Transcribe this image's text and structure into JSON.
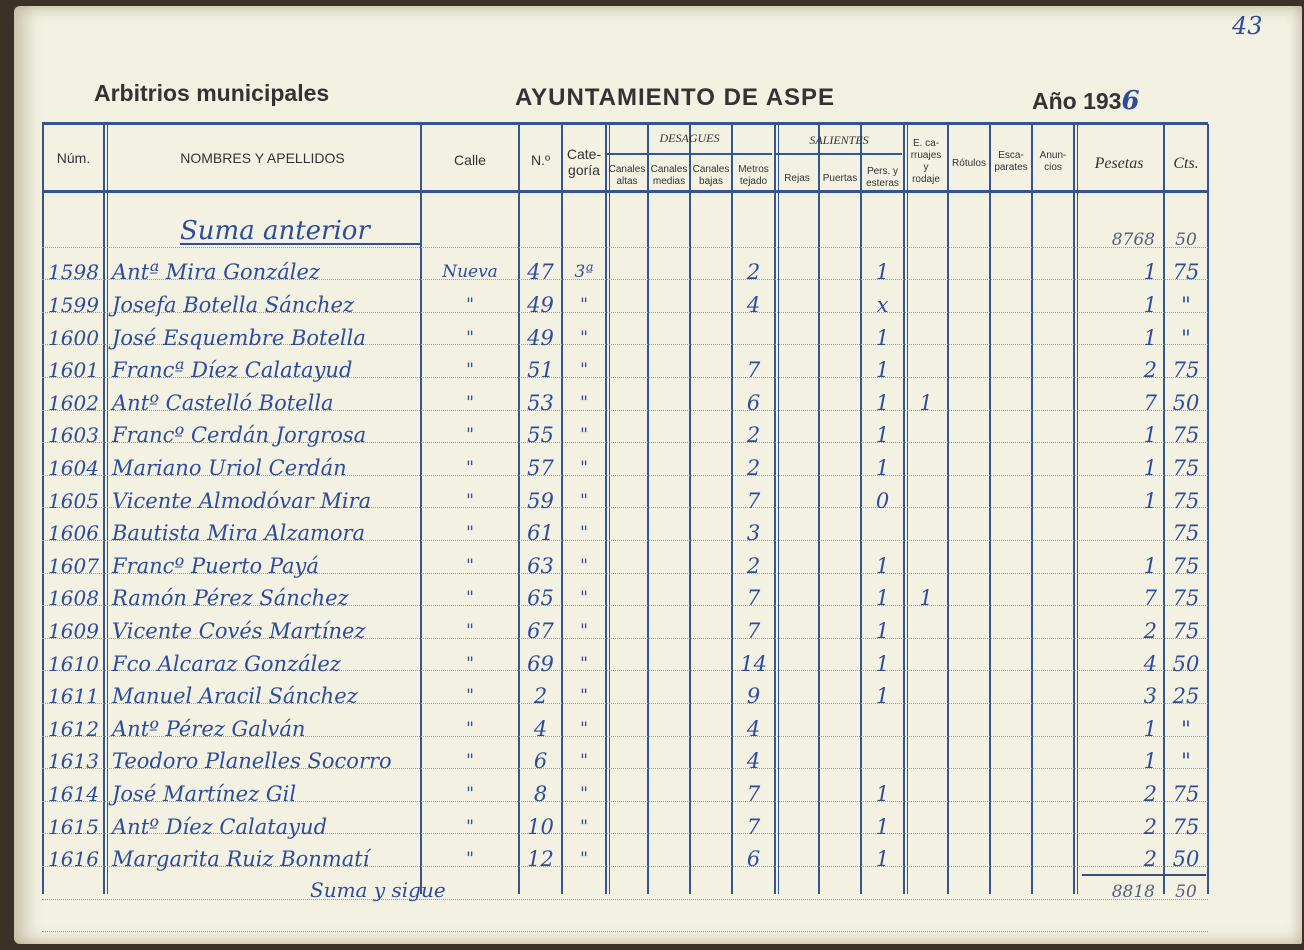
{
  "page_number": "43",
  "header": {
    "left": "Arbitrios municipales",
    "center": "AYUNTAMIENTO DE ASPE",
    "year_label": "Año 193",
    "year_handwritten": "6"
  },
  "columns": {
    "num": "Núm.",
    "nombres": "NOMBRES Y APELLIDOS",
    "calle": "Calle",
    "numero": "N.º",
    "categoria": "Cate-\ngoría",
    "desagues": "DESAGUES",
    "canales_altas": "Canales\naltas",
    "canales_medias": "Canales\nmedias",
    "canales_bajas": "Canales\nbajas",
    "metros_tejado": "Metros\ntejado",
    "salientes": "SALIENTES",
    "rejas": "Rejas",
    "puertas": "Puertas",
    "pers_esteras": "Pers. y\nesteras",
    "carruajes": "E. ca-\nrruajes\ny\nrodaje",
    "rotulos": "Rótulos",
    "escaparates": "Esca-\nparates",
    "anuncios": "Anun-\ncios",
    "pesetas": "Pesetas",
    "cts": "Cts."
  },
  "suma_anterior": {
    "label": "Suma anterior",
    "pesetas": "8768",
    "cts": "50"
  },
  "rows": [
    {
      "num": "1598",
      "nombre": "Antª Mira González",
      "calle": "Nueva",
      "numero": "47",
      "categoria": "3ª",
      "metros": "2",
      "pers": "1",
      "carruajes": "",
      "pesetas": "1",
      "cts": "75"
    },
    {
      "num": "1599",
      "nombre": "Josefa Botella Sánchez",
      "calle": "\"",
      "numero": "49",
      "categoria": "\"",
      "metros": "4",
      "pers": "x",
      "carruajes": "",
      "pesetas": "1",
      "cts": "\""
    },
    {
      "num": "1600",
      "nombre": "José Esquembre Botella",
      "calle": "\"",
      "numero": "49",
      "categoria": "\"",
      "metros": "",
      "pers": "1",
      "carruajes": "",
      "pesetas": "1",
      "cts": "\""
    },
    {
      "num": "1601",
      "nombre": "Francª Díez Calatayud",
      "calle": "\"",
      "numero": "51",
      "categoria": "\"",
      "metros": "7",
      "pers": "1",
      "carruajes": "",
      "pesetas": "2",
      "cts": "75"
    },
    {
      "num": "1602",
      "nombre": "Antº Castelló Botella",
      "calle": "\"",
      "numero": "53",
      "categoria": "\"",
      "metros": "6",
      "pers": "1",
      "carruajes": "1",
      "pesetas": "7",
      "cts": "50"
    },
    {
      "num": "1603",
      "nombre": "Francº Cerdán Jorgrosa",
      "calle": "\"",
      "numero": "55",
      "categoria": "\"",
      "metros": "2",
      "pers": "1",
      "carruajes": "",
      "pesetas": "1",
      "cts": "75"
    },
    {
      "num": "1604",
      "nombre": "Mariano Uriol Cerdán",
      "calle": "\"",
      "numero": "57",
      "categoria": "\"",
      "metros": "2",
      "pers": "1",
      "carruajes": "",
      "pesetas": "1",
      "cts": "75"
    },
    {
      "num": "1605",
      "nombre": "Vicente Almodóvar Mira",
      "calle": "\"",
      "numero": "59",
      "categoria": "\"",
      "metros": "7",
      "pers": "0",
      "carruajes": "",
      "pesetas": "1",
      "cts": "75"
    },
    {
      "num": "1606",
      "nombre": "Bautista Mira Alzamora",
      "calle": "\"",
      "numero": "61",
      "categoria": "\"",
      "metros": "3",
      "pers": "",
      "carruajes": "",
      "pesetas": "",
      "cts": "75"
    },
    {
      "num": "1607",
      "nombre": "Francº Puerto Payá",
      "calle": "\"",
      "numero": "63",
      "categoria": "\"",
      "metros": "2",
      "pers": "1",
      "carruajes": "",
      "pesetas": "1",
      "cts": "75"
    },
    {
      "num": "1608",
      "nombre": "Ramón Pérez Sánchez",
      "calle": "\"",
      "numero": "65",
      "categoria": "\"",
      "metros": "7",
      "pers": "1",
      "carruajes": "1",
      "pesetas": "7",
      "cts": "75"
    },
    {
      "num": "1609",
      "nombre": "Vicente Covés Martínez",
      "calle": "\"",
      "numero": "67",
      "categoria": "\"",
      "metros": "7",
      "pers": "1",
      "carruajes": "",
      "pesetas": "2",
      "cts": "75"
    },
    {
      "num": "1610",
      "nombre": "Fco Alcaraz González",
      "calle": "\"",
      "numero": "69",
      "categoria": "\"",
      "metros": "14",
      "pers": "1",
      "carruajes": "",
      "pesetas": "4",
      "cts": "50"
    },
    {
      "num": "1611",
      "nombre": "Manuel Aracil Sánchez",
      "calle": "\"",
      "numero": "2",
      "categoria": "\"",
      "metros": "9",
      "pers": "1",
      "carruajes": "",
      "pesetas": "3",
      "cts": "25"
    },
    {
      "num": "1612",
      "nombre": "Antº Pérez Galván",
      "calle": "\"",
      "numero": "4",
      "categoria": "\"",
      "metros": "4",
      "pers": "",
      "carruajes": "",
      "pesetas": "1",
      "cts": "\""
    },
    {
      "num": "1613",
      "nombre": "Teodoro Planelles Socorro",
      "calle": "\"",
      "numero": "6",
      "categoria": "\"",
      "metros": "4",
      "pers": "",
      "carruajes": "",
      "pesetas": "1",
      "cts": "\""
    },
    {
      "num": "1614",
      "nombre": "José Martínez Gil",
      "calle": "\"",
      "numero": "8",
      "categoria": "\"",
      "metros": "7",
      "pers": "1",
      "carruajes": "",
      "pesetas": "2",
      "cts": "75"
    },
    {
      "num": "1615",
      "nombre": "Antº Díez Calatayud",
      "calle": "\"",
      "numero": "10",
      "categoria": "\"",
      "metros": "7",
      "pers": "1",
      "carruajes": "",
      "pesetas": "2",
      "cts": "75"
    },
    {
      "num": "1616",
      "nombre": "Margarita Ruiz Bonmatí",
      "calle": "\"",
      "numero": "12",
      "categoria": "\"",
      "metros": "6",
      "pers": "1",
      "carruajes": "",
      "pesetas": "2",
      "cts": "50"
    }
  ],
  "suma_sigue": {
    "label": "Suma y sigue",
    "pesetas": "8818",
    "cts": "50"
  },
  "colors": {
    "ink": "#2e4c9c",
    "rule": "#34558f",
    "paper": "#f3f1e2"
  }
}
